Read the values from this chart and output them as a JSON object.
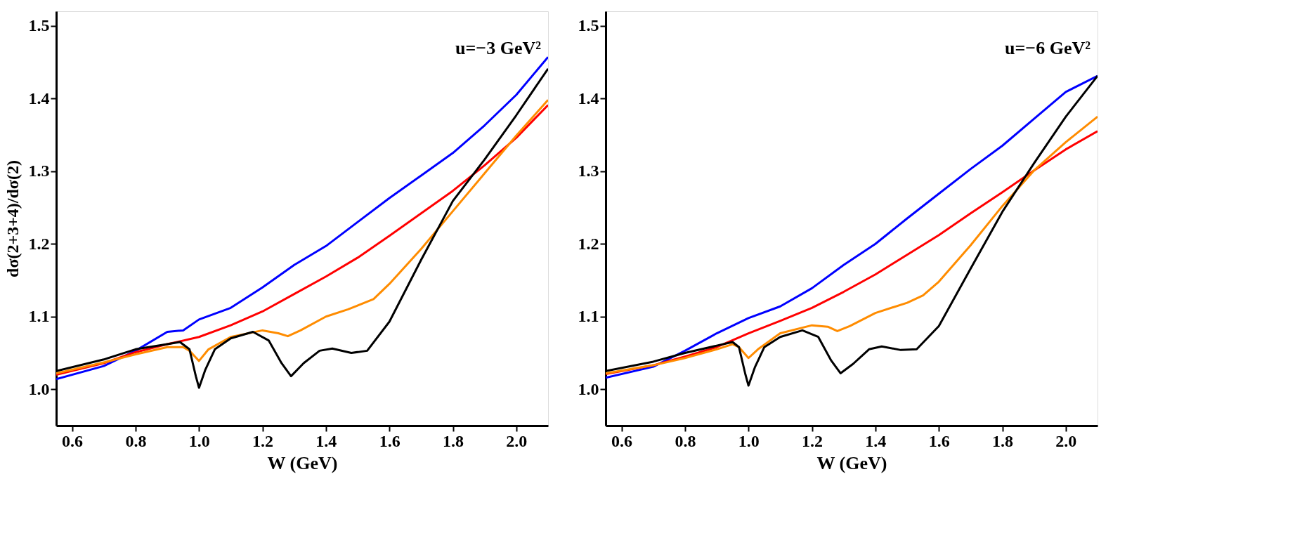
{
  "chart_data": [
    {
      "type": "line",
      "xlabel": "W (GeV)",
      "ylabel": "dσ(2+3+4)/dσ(2)",
      "annotations": [
        "u=−3 GeV²"
      ],
      "xlim": [
        0.55,
        2.1
      ],
      "ylim": [
        0.95,
        1.52
      ],
      "xticks": [
        {
          "value": 0.6,
          "label": "0.6"
        },
        {
          "value": 0.8,
          "label": "0.8"
        },
        {
          "value": 1.0,
          "label": "1.0"
        },
        {
          "value": 1.2,
          "label": "1.2"
        },
        {
          "value": 1.4,
          "label": "1.4"
        },
        {
          "value": 1.6,
          "label": "1.6"
        },
        {
          "value": 1.8,
          "label": "1.8"
        },
        {
          "value": 2.0,
          "label": "2.0"
        }
      ],
      "yticks": [
        {
          "value": 1.0,
          "label": "1.0"
        },
        {
          "value": 1.1,
          "label": "1.1"
        },
        {
          "value": 1.2,
          "label": "1.2"
        },
        {
          "value": 1.3,
          "label": "1.3"
        },
        {
          "value": 1.4,
          "label": "1.4"
        },
        {
          "value": 1.5,
          "label": "1.5"
        }
      ],
      "line_style": "solid",
      "marker": "none",
      "series": [
        {
          "color": "#0000ff",
          "x": [
            0.55,
            0.7,
            0.8,
            0.9,
            0.95,
            1.0,
            1.1,
            1.2,
            1.3,
            1.4,
            1.5,
            1.6,
            1.7,
            1.8,
            1.9,
            2.0,
            2.1
          ],
          "values": [
            1.014,
            1.032,
            1.053,
            1.079,
            1.081,
            1.096,
            1.112,
            1.14,
            1.171,
            1.197,
            1.23,
            1.263,
            1.294,
            1.325,
            1.363,
            1.405,
            1.457
          ]
        },
        {
          "color": "#ff0000",
          "x": [
            0.55,
            0.7,
            0.8,
            0.9,
            1.0,
            1.1,
            1.2,
            1.3,
            1.4,
            1.5,
            1.6,
            1.7,
            1.8,
            1.9,
            2.0,
            2.1
          ],
          "values": [
            1.02,
            1.036,
            1.051,
            1.062,
            1.072,
            1.088,
            1.107,
            1.131,
            1.155,
            1.181,
            1.211,
            1.242,
            1.273,
            1.308,
            1.346,
            1.391
          ]
        },
        {
          "color": "#ff8c00",
          "x": [
            0.55,
            0.7,
            0.8,
            0.9,
            0.95,
            0.97,
            1.0,
            1.03,
            1.1,
            1.2,
            1.25,
            1.28,
            1.32,
            1.4,
            1.47,
            1.55,
            1.6,
            1.7,
            1.8,
            1.9,
            2.0,
            2.1
          ],
          "values": [
            1.022,
            1.037,
            1.048,
            1.058,
            1.058,
            1.053,
            1.039,
            1.055,
            1.072,
            1.081,
            1.077,
            1.073,
            1.081,
            1.1,
            1.11,
            1.124,
            1.145,
            1.193,
            1.245,
            1.297,
            1.349,
            1.398
          ]
        },
        {
          "color": "#000000",
          "x": [
            0.55,
            0.7,
            0.8,
            0.9,
            0.94,
            0.97,
            0.99,
            1.0,
            1.02,
            1.05,
            1.1,
            1.17,
            1.22,
            1.26,
            1.29,
            1.33,
            1.38,
            1.42,
            1.48,
            1.53,
            1.6,
            1.7,
            1.8,
            1.9,
            2.0,
            2.1
          ],
          "values": [
            1.025,
            1.041,
            1.055,
            1.062,
            1.065,
            1.055,
            1.018,
            1.002,
            1.027,
            1.055,
            1.07,
            1.079,
            1.067,
            1.036,
            1.018,
            1.036,
            1.053,
            1.056,
            1.05,
            1.053,
            1.093,
            1.178,
            1.259,
            1.316,
            1.377,
            1.441
          ]
        }
      ]
    },
    {
      "type": "line",
      "xlabel": "W (GeV)",
      "annotations": [
        "u=−6 GeV²"
      ],
      "xlim": [
        0.55,
        2.1
      ],
      "ylim": [
        0.95,
        1.52
      ],
      "xticks": [
        {
          "value": 0.6,
          "label": "0.6"
        },
        {
          "value": 0.8,
          "label": "0.8"
        },
        {
          "value": 1.0,
          "label": "1.0"
        },
        {
          "value": 1.2,
          "label": "1.2"
        },
        {
          "value": 1.4,
          "label": "1.4"
        },
        {
          "value": 1.6,
          "label": "1.6"
        },
        {
          "value": 1.8,
          "label": "1.8"
        },
        {
          "value": 2.0,
          "label": "2.0"
        }
      ],
      "yticks": [
        {
          "value": 1.0,
          "label": "1.0"
        },
        {
          "value": 1.1,
          "label": "1.1"
        },
        {
          "value": 1.2,
          "label": "1.2"
        },
        {
          "value": 1.3,
          "label": "1.3"
        },
        {
          "value": 1.4,
          "label": "1.4"
        },
        {
          "value": 1.5,
          "label": "1.5"
        }
      ],
      "line_style": "solid",
      "marker": "none",
      "series": [
        {
          "color": "#0000ff",
          "x": [
            0.55,
            0.7,
            0.8,
            0.9,
            1.0,
            1.1,
            1.2,
            1.3,
            1.4,
            1.5,
            1.6,
            1.7,
            1.8,
            1.9,
            2.0,
            2.1
          ],
          "values": [
            1.016,
            1.031,
            1.053,
            1.077,
            1.098,
            1.114,
            1.139,
            1.171,
            1.2,
            1.235,
            1.269,
            1.303,
            1.335,
            1.372,
            1.409,
            1.431
          ]
        },
        {
          "color": "#ff0000",
          "x": [
            0.55,
            0.7,
            0.8,
            0.9,
            1.0,
            1.1,
            1.2,
            1.3,
            1.4,
            1.5,
            1.6,
            1.7,
            1.8,
            1.9,
            2.0,
            2.1
          ],
          "values": [
            1.021,
            1.033,
            1.045,
            1.058,
            1.077,
            1.094,
            1.112,
            1.134,
            1.158,
            1.185,
            1.212,
            1.242,
            1.271,
            1.301,
            1.33,
            1.355
          ]
        },
        {
          "color": "#ff8c00",
          "x": [
            0.55,
            0.7,
            0.8,
            0.9,
            0.95,
            0.97,
            1.0,
            1.03,
            1.1,
            1.2,
            1.25,
            1.28,
            1.32,
            1.4,
            1.5,
            1.55,
            1.6,
            1.7,
            1.8,
            1.9,
            2.0,
            2.1
          ],
          "values": [
            1.022,
            1.033,
            1.043,
            1.055,
            1.062,
            1.058,
            1.043,
            1.055,
            1.077,
            1.088,
            1.086,
            1.08,
            1.087,
            1.105,
            1.119,
            1.129,
            1.148,
            1.198,
            1.252,
            1.301,
            1.34,
            1.375
          ]
        },
        {
          "color": "#000000",
          "x": [
            0.55,
            0.7,
            0.8,
            0.9,
            0.95,
            0.97,
            0.99,
            1.0,
            1.02,
            1.05,
            1.1,
            1.17,
            1.22,
            1.26,
            1.29,
            1.33,
            1.38,
            1.42,
            1.48,
            1.53,
            1.6,
            1.7,
            1.8,
            1.9,
            2.0,
            2.1
          ],
          "values": [
            1.025,
            1.038,
            1.05,
            1.06,
            1.065,
            1.058,
            1.021,
            1.005,
            1.03,
            1.058,
            1.072,
            1.081,
            1.072,
            1.04,
            1.022,
            1.035,
            1.055,
            1.059,
            1.054,
            1.055,
            1.087,
            1.166,
            1.244,
            1.311,
            1.375,
            1.431
          ]
        }
      ]
    }
  ]
}
